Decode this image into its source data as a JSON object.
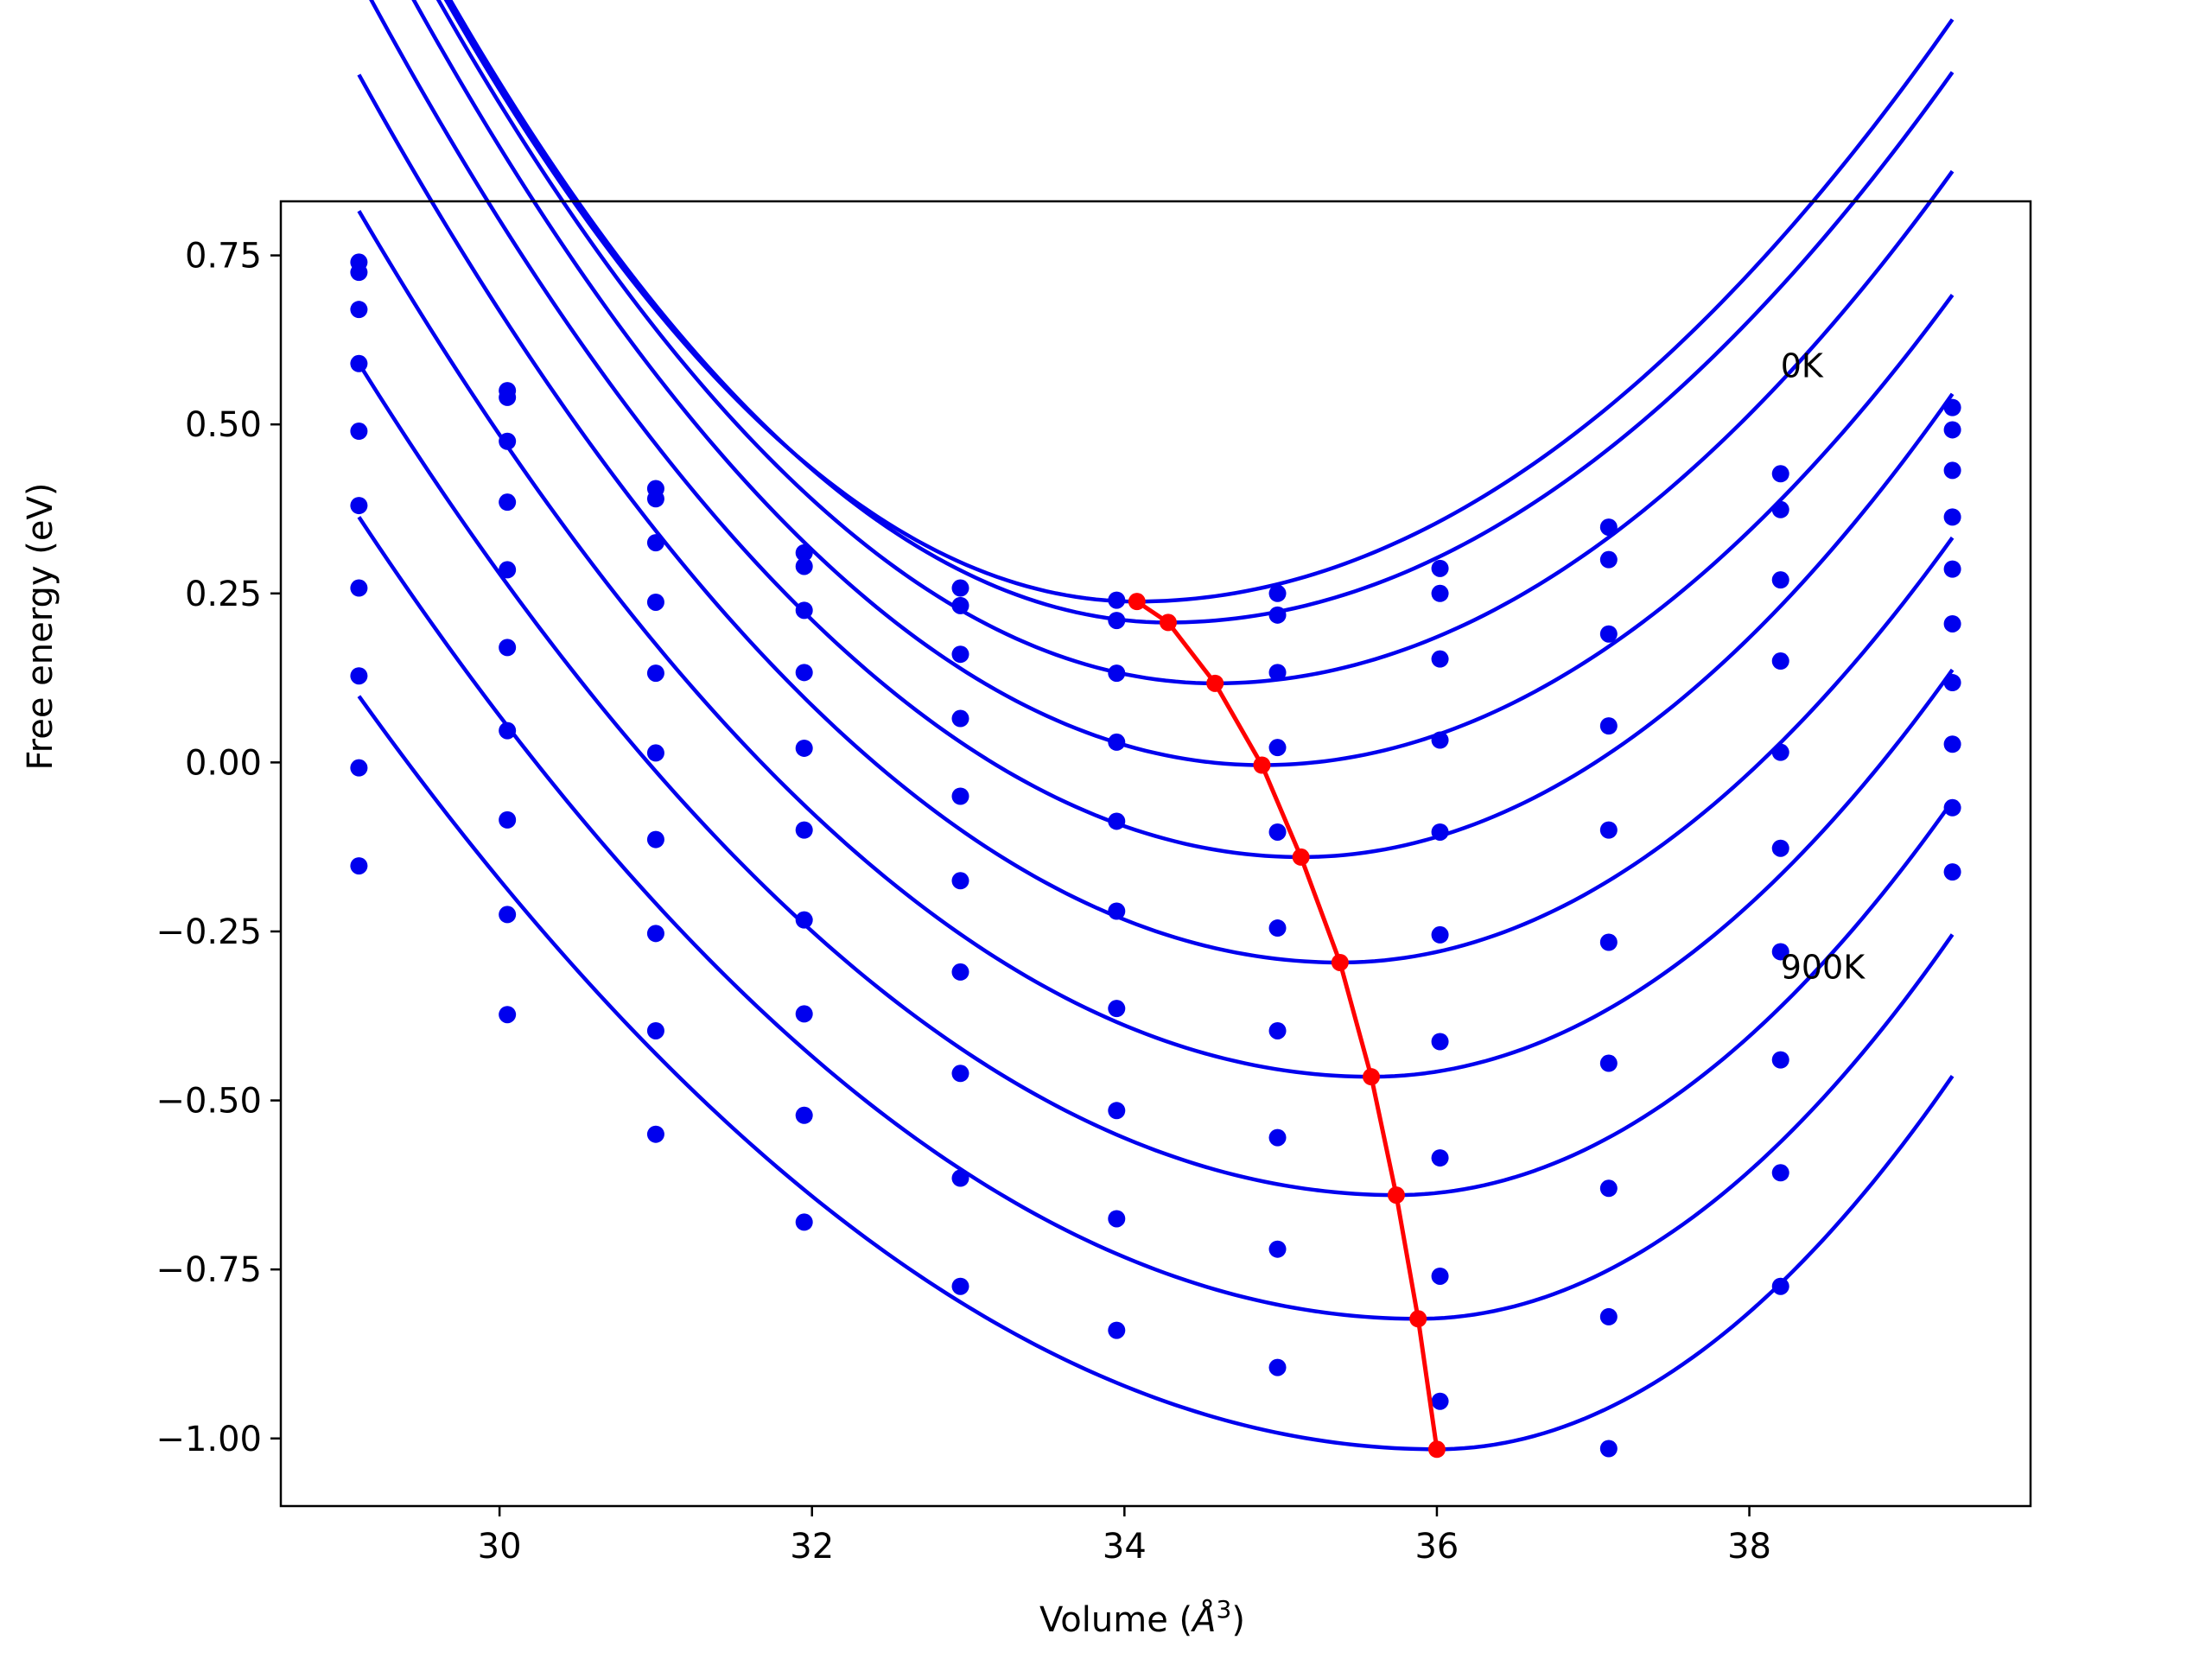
{
  "chart_data": {
    "type": "line",
    "title": "",
    "xlabel": "Volume (",
    "xlabel_italic": "Å",
    "xlabel_sup": "3",
    "xlabel_close": ")",
    "ylabel": "Free energy (eV)",
    "xlim": [
      28.6,
      39.8
    ],
    "ylim": [
      -1.1,
      0.83
    ],
    "xticks": [
      30,
      32,
      34,
      36,
      38
    ],
    "xtick_labels": [
      "30",
      "32",
      "34",
      "36",
      "38"
    ],
    "yticks": [
      0.75,
      0.5,
      0.25,
      0.0,
      -0.25,
      -0.5,
      -0.75,
      -1.0
    ],
    "ytick_labels": [
      "0.75",
      "0.50",
      "0.25",
      "0.00",
      "−0.25",
      "−0.50",
      "−0.75",
      "−1.00"
    ],
    "grid": false,
    "annotations": [
      {
        "text": "0K",
        "x": 38.2,
        "y": 0.57
      },
      {
        "text": "900K",
        "x": 38.2,
        "y": -0.32
      }
    ],
    "series_color": "#0000ee",
    "minimum_color": "#ff0000",
    "volumes": [
      29.1,
      30.05,
      31.0,
      31.95,
      32.95,
      33.95,
      34.98,
      36.02,
      37.1,
      38.2,
      39.3
    ],
    "series": [
      {
        "points": [
          0.74,
          0.55,
          0.405,
          0.31,
          0.258,
          0.24,
          0.25,
          0.287,
          0.348,
          0.427,
          0.525
        ],
        "fit": {
          "vmin": 34.08,
          "emin": 0.238,
          "left": 0.0455,
          "right": 0.0316
        }
      },
      {
        "points": [
          0.725,
          0.54,
          0.39,
          0.29,
          0.232,
          0.21,
          0.218,
          0.25,
          0.3,
          0.374,
          0.492
        ],
        "fit": {
          "vmin": 34.28,
          "emin": 0.207,
          "left": 0.0436,
          "right": 0.0323
        }
      },
      {
        "points": [
          0.67,
          0.475,
          0.325,
          0.225,
          0.16,
          0.132,
          0.133,
          0.153,
          0.19,
          0.27,
          0.432
        ],
        "fit": {
          "vmin": 34.58,
          "emin": 0.117,
          "left": 0.0409,
          "right": 0.034
        }
      },
      {
        "points": [
          0.59,
          0.385,
          0.237,
          0.133,
          0.065,
          0.03,
          0.022,
          0.033,
          0.054,
          0.15,
          0.363
        ],
        "fit": {
          "vmin": 34.88,
          "emin": -0.004,
          "left": 0.0384,
          "right": 0.0356
        }
      },
      {
        "points": [
          0.49,
          0.285,
          0.132,
          0.021,
          -0.05,
          -0.087,
          -0.103,
          -0.103,
          -0.1,
          0.015,
          0.286
        ],
        "fit": {
          "vmin": 35.13,
          "emin": -0.14,
          "left": 0.0358,
          "right": 0.0394
        }
      },
      {
        "points": [
          0.38,
          0.17,
          0.014,
          -0.1,
          -0.175,
          -0.22,
          -0.245,
          -0.255,
          -0.266,
          -0.127,
          0.205
        ],
        "fit": {
          "vmin": 35.38,
          "emin": -0.296,
          "left": 0.0333,
          "right": 0.0409
        }
      },
      {
        "points": [
          0.258,
          0.047,
          -0.114,
          -0.233,
          -0.31,
          -0.364,
          -0.397,
          -0.413,
          -0.445,
          -0.28,
          0.118
        ],
        "fit": {
          "vmin": 35.58,
          "emin": -0.465,
          "left": 0.0305,
          "right": 0.0435
        }
      },
      {
        "points": [
          0.128,
          -0.085,
          -0.253,
          -0.372,
          -0.46,
          -0.515,
          -0.555,
          -0.585,
          -0.63,
          -0.44,
          0.027
        ],
        "fit": {
          "vmin": 35.74,
          "emin": -0.64,
          "left": 0.0279,
          "right": 0.046
        }
      },
      {
        "points": [
          -0.008,
          -0.225,
          -0.397,
          -0.522,
          -0.615,
          -0.675,
          -0.72,
          -0.76,
          -0.82,
          -0.607,
          -0.067
        ],
        "fit": {
          "vmin": 35.88,
          "emin": -0.823,
          "left": 0.0258,
          "right": 0.0486
        }
      },
      {
        "points": [
          -0.153,
          -0.373,
          -0.55,
          -0.68,
          -0.775,
          -0.84,
          -0.895,
          -0.945,
          -1.015,
          -0.775,
          -0.162
        ],
        "fit": {
          "vmin": 36.0,
          "emin": -1.016,
          "left": 0.0234,
          "right": 0.0507
        }
      }
    ],
    "minimum_line": {
      "x": [
        34.08,
        34.28,
        34.58,
        34.88,
        35.13,
        35.38,
        35.58,
        35.74,
        35.88,
        36.0
      ],
      "y": [
        0.238,
        0.207,
        0.117,
        -0.004,
        -0.14,
        -0.296,
        -0.465,
        -0.64,
        -0.823,
        -1.016
      ]
    }
  }
}
